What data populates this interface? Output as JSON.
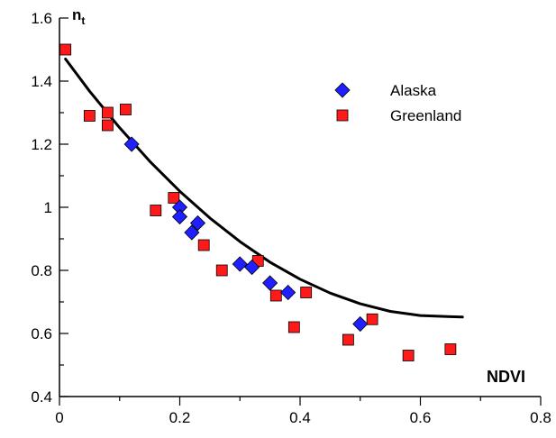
{
  "chart_data": {
    "type": "scatter",
    "xlabel": "NDVI",
    "ylabel": {
      "main": "n",
      "sub": "t"
    },
    "xlim": [
      0,
      0.8
    ],
    "ylim": [
      0.4,
      1.6
    ],
    "xticks": [
      0,
      0.2,
      0.4,
      0.6,
      0.8
    ],
    "xtick_labels": [
      "0",
      "0.2",
      "0.4",
      "0.6",
      "0.8"
    ],
    "yticks": [
      0.4,
      0.6,
      0.8,
      1.0,
      1.2,
      1.4,
      1.6
    ],
    "ytick_labels": [
      "0.4",
      "0.6",
      "0.8",
      "1",
      "1.2",
      "1.4",
      "1.6"
    ],
    "legend_position": "top-right",
    "series": [
      {
        "name": "Alaska",
        "marker": "diamond",
        "color": "#1f1fff",
        "points": [
          [
            0.12,
            1.2
          ],
          [
            0.2,
            1.0
          ],
          [
            0.2,
            0.97
          ],
          [
            0.22,
            0.92
          ],
          [
            0.23,
            0.95
          ],
          [
            0.3,
            0.82
          ],
          [
            0.32,
            0.81
          ],
          [
            0.35,
            0.76
          ],
          [
            0.38,
            0.73
          ],
          [
            0.5,
            0.63
          ]
        ]
      },
      {
        "name": "Greenland",
        "marker": "square",
        "color": "#ff1a1a",
        "points": [
          [
            0.01,
            1.5
          ],
          [
            0.05,
            1.29
          ],
          [
            0.08,
            1.3
          ],
          [
            0.08,
            1.26
          ],
          [
            0.11,
            1.31
          ],
          [
            0.16,
            0.99
          ],
          [
            0.19,
            1.03
          ],
          [
            0.24,
            0.88
          ],
          [
            0.27,
            0.8
          ],
          [
            0.33,
            0.83
          ],
          [
            0.36,
            0.72
          ],
          [
            0.39,
            0.62
          ],
          [
            0.41,
            0.73
          ],
          [
            0.48,
            0.58
          ],
          [
            0.52,
            0.645
          ],
          [
            0.58,
            0.53
          ],
          [
            0.65,
            0.55
          ]
        ]
      }
    ],
    "fit_curve": {
      "type": "quadratic",
      "color": "#000000",
      "x": [
        0.01,
        0.05,
        0.1,
        0.15,
        0.2,
        0.25,
        0.3,
        0.35,
        0.4,
        0.45,
        0.5,
        0.55,
        0.6,
        0.65,
        0.67
      ],
      "y": [
        1.47,
        1.368,
        1.252,
        1.146,
        1.051,
        0.966,
        0.891,
        0.826,
        0.772,
        0.728,
        0.694,
        0.67,
        0.657,
        0.653,
        0.652
      ]
    }
  }
}
